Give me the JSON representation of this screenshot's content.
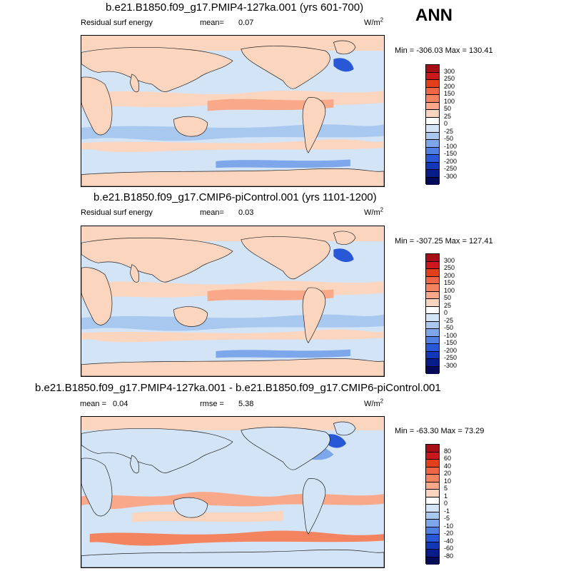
{
  "season": "ANN",
  "panels": [
    {
      "title": "b.e21.B1850.f09_g17.PMIP4-127ka.001 (yrs 601-700)",
      "left_label": "Residual surf energy",
      "stat_label": "mean=",
      "stat_value": "0.07",
      "stat2_label": "",
      "stat2_value": "",
      "units": "W/m",
      "units_sup": "2",
      "minmax": "Min = -306.03 Max = 130.41",
      "colorbar_levels": [
        "300",
        "250",
        "200",
        "150",
        "100",
        "50",
        "25",
        "0",
        "-25",
        "-50",
        "-100",
        "-150",
        "-200",
        "-250",
        "-300"
      ],
      "colorbar_colors": [
        "#a50f15",
        "#cb181d",
        "#e2401c",
        "#ef6548",
        "#f4845f",
        "#f9a98a",
        "#fcd5bf",
        "#ffffff",
        "#d3e4f7",
        "#a9c8f0",
        "#7da7ea",
        "#4f7fe0",
        "#2958d6",
        "#1238b8",
        "#081d8a",
        "#040a57"
      ]
    },
    {
      "title": "b.e21.B1850.f09_g17.CMIP6-piControl.001 (yrs 1101-1200)",
      "left_label": "Residual surf energy",
      "stat_label": "mean=",
      "stat_value": "0.03",
      "stat2_label": "",
      "stat2_value": "",
      "units": "W/m",
      "units_sup": "2",
      "minmax": "Min = -307.25 Max = 127.41",
      "colorbar_levels": [
        "300",
        "250",
        "200",
        "150",
        "100",
        "50",
        "25",
        "0",
        "-25",
        "-50",
        "-100",
        "-150",
        "-200",
        "-250",
        "-300"
      ],
      "colorbar_colors": [
        "#a50f15",
        "#cb181d",
        "#e2401c",
        "#ef6548",
        "#f4845f",
        "#f9a98a",
        "#fcd5bf",
        "#ffffff",
        "#d3e4f7",
        "#a9c8f0",
        "#7da7ea",
        "#4f7fe0",
        "#2958d6",
        "#1238b8",
        "#081d8a",
        "#040a57"
      ]
    },
    {
      "title": "b.e21.B1850.f09_g17.PMIP4-127ka.001 - b.e21.B1850.f09_g17.CMIP6-piControl.001",
      "left_label": "",
      "stat_label": "mean =",
      "stat_value": "0.04",
      "stat2_label": "rmse =",
      "stat2_value": "5.38",
      "units": "W/m",
      "units_sup": "2",
      "minmax": "Min = -63.30 Max =  73.29",
      "colorbar_levels": [
        "80",
        "60",
        "40",
        "20",
        "10",
        "5",
        "1",
        "0",
        "-1",
        "-5",
        "-10",
        "-20",
        "-40",
        "-60",
        "-80"
      ],
      "colorbar_colors": [
        "#a50f15",
        "#cb181d",
        "#e2401c",
        "#ef6548",
        "#f4845f",
        "#f9a98a",
        "#fcd5bf",
        "#ffffff",
        "#d3e4f7",
        "#a9c8f0",
        "#7da7ea",
        "#4f7fe0",
        "#2958d6",
        "#1238b8",
        "#081d8a",
        "#040a57"
      ]
    }
  ]
}
